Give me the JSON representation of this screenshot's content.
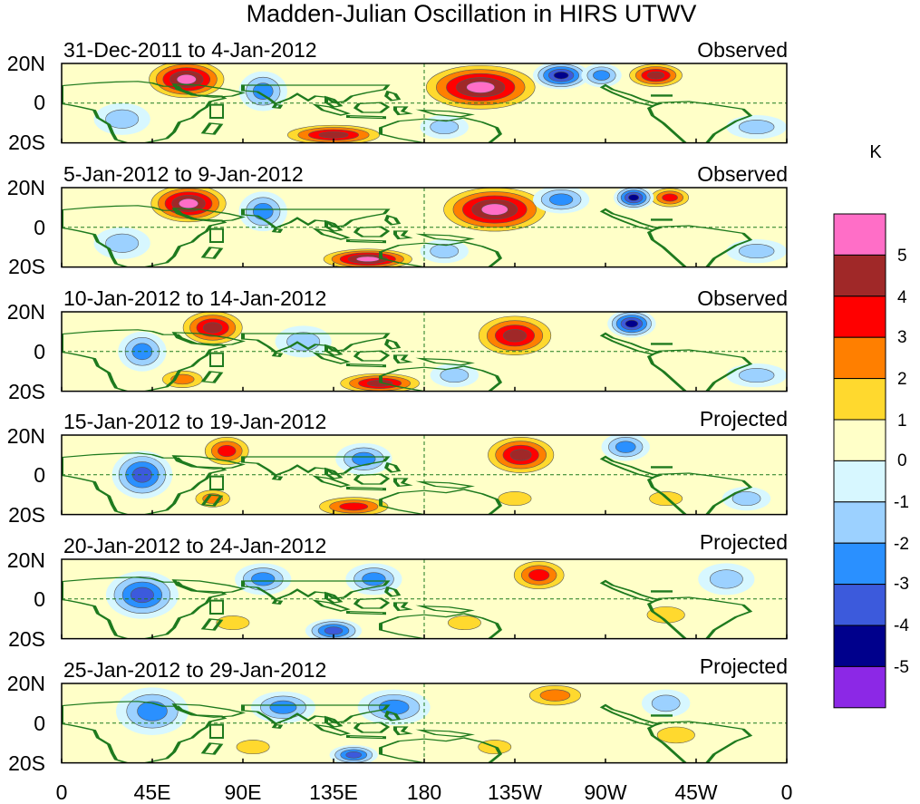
{
  "figure": {
    "title": "Madden-Julian Oscillation in HIRS UTWV",
    "unit": "K"
  },
  "latitude_labels": [
    "20N",
    "0",
    "20S"
  ],
  "longitude_labels": [
    "0",
    "45E",
    "90E",
    "135E",
    "180",
    "135W",
    "90W",
    "45W",
    "0"
  ],
  "panels": [
    {
      "period": "31-Dec-2011 to 4-Jan-2012",
      "type": "Observed"
    },
    {
      "period": "5-Jan-2012 to 9-Jan-2012",
      "type": "Observed"
    },
    {
      "period": "10-Jan-2012 to 14-Jan-2012",
      "type": "Observed"
    },
    {
      "period": "15-Jan-2012 to 19-Jan-2012",
      "type": "Projected"
    },
    {
      "period": "20-Jan-2012 to 24-Jan-2012",
      "type": "Projected"
    },
    {
      "period": "25-Jan-2012 to 29-Jan-2012",
      "type": "Projected"
    }
  ],
  "colorbar": {
    "labels": [
      "5",
      "4",
      "3",
      "2",
      "1",
      "0",
      "-1",
      "-2",
      "-3",
      "-4",
      "-5"
    ],
    "colors": [
      "#ff6ec7",
      "#a02828",
      "#ff0000",
      "#ff7f00",
      "#ffd92e",
      "#ffffc8",
      "#d7f7ff",
      "#9cd1ff",
      "#2a90ff",
      "#3c5adc",
      "#00008c",
      "#8c28e6"
    ]
  },
  "anomalies": [
    [
      {
        "lon": 62,
        "lat": 12,
        "rl": 22,
        "rt": 11,
        "v": 5.3
      },
      {
        "lon": 135,
        "lat": -16,
        "rl": 28,
        "rt": 6,
        "v": 4.2
      },
      {
        "lon": 208,
        "lat": 8,
        "rl": 32,
        "rt": 13,
        "v": 5.2
      },
      {
        "lon": 295,
        "lat": 14,
        "rl": 16,
        "rt": 7,
        "v": 4.5
      },
      {
        "lon": 248,
        "lat": 14,
        "rl": 14,
        "rt": 7,
        "v": -4.5
      },
      {
        "lon": 268,
        "lat": 14,
        "rl": 10,
        "rt": 6,
        "v": -3
      },
      {
        "lon": 100,
        "lat": 6,
        "rl": 12,
        "rt": 10,
        "v": -2.5
      },
      {
        "lon": 30,
        "lat": -8,
        "rl": 14,
        "rt": 8,
        "v": -2
      },
      {
        "lon": 190,
        "lat": -12,
        "rl": 12,
        "rt": 6,
        "v": -2
      },
      {
        "lon": 345,
        "lat": -12,
        "rl": 15,
        "rt": 6,
        "v": -2
      }
    ],
    [
      {
        "lon": 63,
        "lat": 12,
        "rl": 22,
        "rt": 11,
        "v": 5.3
      },
      {
        "lon": 152,
        "lat": -16,
        "rl": 26,
        "rt": 6,
        "v": 5.1
      },
      {
        "lon": 215,
        "lat": 9,
        "rl": 30,
        "rt": 13,
        "v": 5.2
      },
      {
        "lon": 302,
        "lat": 15,
        "rl": 12,
        "rt": 6,
        "v": 3.5
      },
      {
        "lon": 284,
        "lat": 15,
        "rl": 10,
        "rt": 6,
        "v": -4.5
      },
      {
        "lon": 248,
        "lat": 14,
        "rl": 14,
        "rt": 7,
        "v": -2.5
      },
      {
        "lon": 100,
        "lat": 8,
        "rl": 12,
        "rt": 10,
        "v": -2.5
      },
      {
        "lon": 30,
        "lat": -8,
        "rl": 14,
        "rt": 8,
        "v": -2
      },
      {
        "lon": 190,
        "lat": -12,
        "rl": 12,
        "rt": 6,
        "v": -1.5
      },
      {
        "lon": 345,
        "lat": -12,
        "rl": 15,
        "rt": 6,
        "v": -2
      }
    ],
    [
      {
        "lon": 75,
        "lat": 12,
        "rl": 18,
        "rt": 10,
        "v": 4.5
      },
      {
        "lon": 158,
        "lat": -16,
        "rl": 24,
        "rt": 6,
        "v": 4.5
      },
      {
        "lon": 225,
        "lat": 8,
        "rl": 22,
        "rt": 12,
        "v": 4.5
      },
      {
        "lon": 283,
        "lat": 14,
        "rl": 12,
        "rt": 7,
        "v": -4.5
      },
      {
        "lon": 60,
        "lat": -14,
        "rl": 14,
        "rt": 6,
        "v": 2.5
      },
      {
        "lon": 40,
        "lat": 0,
        "rl": 12,
        "rt": 10,
        "v": -2.5
      },
      {
        "lon": 120,
        "lat": 5,
        "rl": 14,
        "rt": 8,
        "v": -2
      },
      {
        "lon": 195,
        "lat": -12,
        "rl": 12,
        "rt": 6,
        "v": -2
      },
      {
        "lon": 345,
        "lat": -12,
        "rl": 15,
        "rt": 6,
        "v": -2
      }
    ],
    [
      {
        "lon": 82,
        "lat": 12,
        "rl": 14,
        "rt": 9,
        "v": 3.8
      },
      {
        "lon": 145,
        "lat": -16,
        "rl": 22,
        "rt": 6,
        "v": 3.5
      },
      {
        "lon": 228,
        "lat": 10,
        "rl": 20,
        "rt": 11,
        "v": 4.2
      },
      {
        "lon": 280,
        "lat": 14,
        "rl": 12,
        "rt": 7,
        "v": -3
      },
      {
        "lon": 40,
        "lat": 0,
        "rl": 15,
        "rt": 12,
        "v": -3.5
      },
      {
        "lon": 75,
        "lat": -12,
        "rl": 12,
        "rt": 6,
        "v": 2.5
      },
      {
        "lon": 150,
        "lat": 8,
        "rl": 14,
        "rt": 8,
        "v": -2.5
      },
      {
        "lon": 225,
        "lat": -12,
        "rl": 14,
        "rt": 6,
        "v": 1.5
      },
      {
        "lon": 300,
        "lat": -12,
        "rl": 14,
        "rt": 6,
        "v": 1.8
      },
      {
        "lon": 340,
        "lat": -12,
        "rl": 12,
        "rt": 6,
        "v": -2
      }
    ],
    [
      {
        "lon": 237,
        "lat": 12,
        "rl": 16,
        "rt": 9,
        "v": 3.6
      },
      {
        "lon": 40,
        "lat": 2,
        "rl": 18,
        "rt": 12,
        "v": -3.5
      },
      {
        "lon": 100,
        "lat": 10,
        "rl": 14,
        "rt": 8,
        "v": -2.2
      },
      {
        "lon": 155,
        "lat": 10,
        "rl": 14,
        "rt": 8,
        "v": -3
      },
      {
        "lon": 135,
        "lat": -16,
        "rl": 14,
        "rt": 6,
        "v": -3.5
      },
      {
        "lon": 85,
        "lat": -12,
        "rl": 14,
        "rt": 6,
        "v": 2
      },
      {
        "lon": 200,
        "lat": -12,
        "rl": 14,
        "rt": 6,
        "v": 1.8
      },
      {
        "lon": 300,
        "lat": -8,
        "rl": 16,
        "rt": 7,
        "v": 1.6
      },
      {
        "lon": 330,
        "lat": 10,
        "rl": 14,
        "rt": 8,
        "v": -1.5
      }
    ],
    [
      {
        "lon": 245,
        "lat": 14,
        "rl": 18,
        "rt": 7,
        "v": 2.6
      },
      {
        "lon": 45,
        "lat": 6,
        "rl": 18,
        "rt": 12,
        "v": -2.8
      },
      {
        "lon": 110,
        "lat": 8,
        "rl": 16,
        "rt": 8,
        "v": -2.2
      },
      {
        "lon": 165,
        "lat": 8,
        "rl": 18,
        "rt": 9,
        "v": -2.6
      },
      {
        "lon": 145,
        "lat": -16,
        "rl": 12,
        "rt": 5,
        "v": -3.2
      },
      {
        "lon": 95,
        "lat": -12,
        "rl": 14,
        "rt": 6,
        "v": 1.6
      },
      {
        "lon": 215,
        "lat": -12,
        "rl": 14,
        "rt": 6,
        "v": 1.5
      },
      {
        "lon": 305,
        "lat": -6,
        "rl": 16,
        "rt": 7,
        "v": 1.4
      },
      {
        "lon": 300,
        "lat": 10,
        "rl": 12,
        "rt": 7,
        "v": -2
      }
    ]
  ]
}
